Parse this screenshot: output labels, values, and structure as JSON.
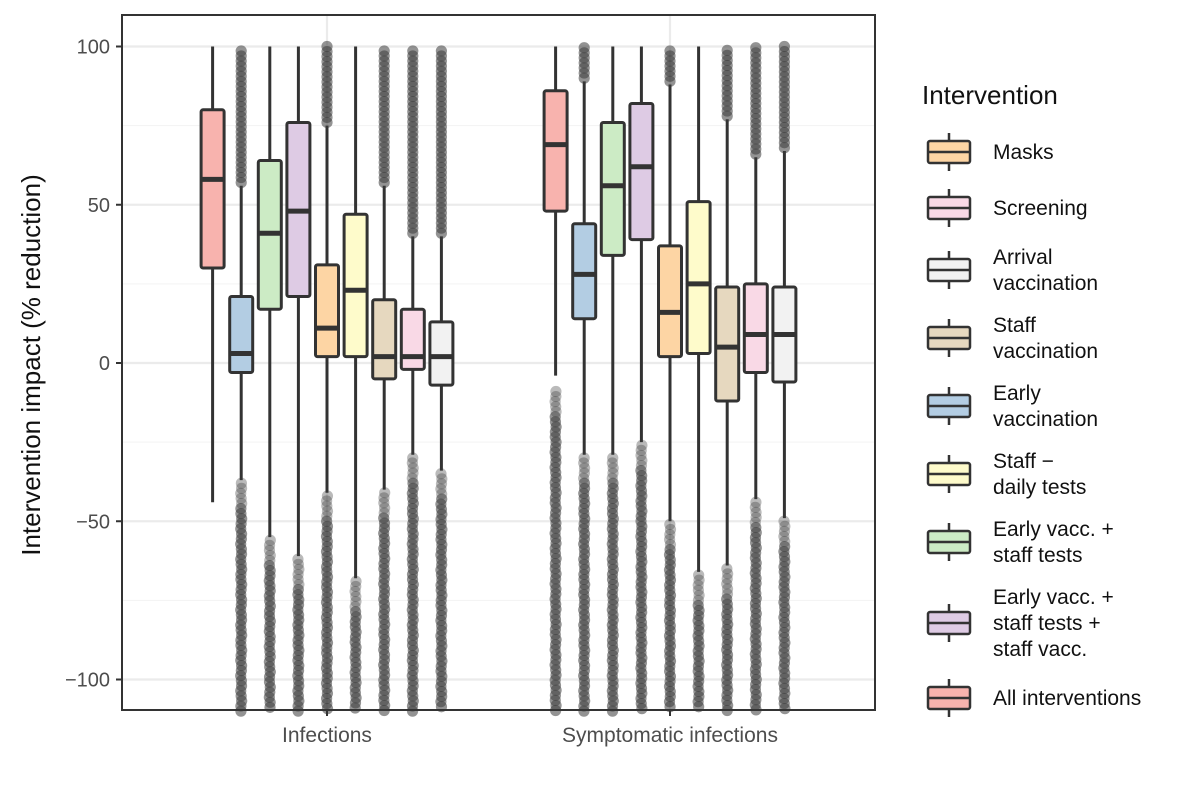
{
  "chart_data": {
    "type": "boxplot",
    "title": "",
    "xlabel": "",
    "ylabel": "Intervention impact (% reduction)",
    "ylim": [
      -110,
      105
    ],
    "yticks": [
      -100,
      -50,
      0,
      50,
      100
    ],
    "grid": true,
    "legend_position": "right",
    "legend": {
      "title": "Intervention",
      "items": [
        {
          "name": "Masks",
          "lines": [
            "Masks"
          ],
          "color": "#fdd5a4"
        },
        {
          "name": "Screening",
          "lines": [
            "Screening"
          ],
          "color": "#f9d9e6"
        },
        {
          "name": "Arrival vaccination",
          "lines": [
            "Arrival",
            "vaccination"
          ],
          "color": "#f2f2f2"
        },
        {
          "name": "Staff vaccination",
          "lines": [
            "Staff",
            "vaccination"
          ],
          "color": "#e6d8bf"
        },
        {
          "name": "Early vaccination",
          "lines": [
            "Early",
            "vaccination"
          ],
          "color": "#b3cde3"
        },
        {
          "name": "Staff − daily tests",
          "lines": [
            "Staff −",
            "daily tests"
          ],
          "color": "#fefbcb"
        },
        {
          "name": "Early vacc. + staff tests",
          "lines": [
            "Early vacc. +",
            "staff tests"
          ],
          "color": "#ccebc5"
        },
        {
          "name": "Early vacc. + staff tests + staff vacc.",
          "lines": [
            "Early vacc. +",
            "staff tests +",
            "staff vacc."
          ],
          "color": "#decbe4"
        },
        {
          "name": "All interventions",
          "lines": [
            "All interventions"
          ],
          "color": "#f8b3ae"
        }
      ]
    },
    "categories": [
      "Infections",
      "Symptomatic infections"
    ],
    "box_order": [
      "All interventions",
      "Early vaccination",
      "Early vacc. + staff tests",
      "Early vacc. + staff tests + staff vacc.",
      "Masks",
      "Staff − daily tests",
      "Staff vaccination",
      "Screening",
      "Arrival vaccination"
    ],
    "boxes": [
      [
        {
          "series": "All interventions",
          "whisker_low": -44,
          "q1": 30,
          "median": 58,
          "q3": 80,
          "whisker_high": 100,
          "outliers_low_from": null,
          "outliers_high_from": null
        },
        {
          "series": "Early vaccination",
          "whisker_low": -37,
          "q1": -3,
          "median": 3,
          "q3": 21,
          "whisker_high": 56,
          "outliers_low_from": -38,
          "outliers_high_from": 57
        },
        {
          "series": "Early vacc. + staff tests",
          "whisker_low": -55,
          "q1": 17,
          "median": 41,
          "q3": 64,
          "whisker_high": 100,
          "outliers_low_from": -56,
          "outliers_high_from": null
        },
        {
          "series": "Early vacc. + staff tests + staff vacc.",
          "whisker_low": -61,
          "q1": 21,
          "median": 48,
          "q3": 76,
          "whisker_high": 100,
          "outliers_low_from": -62,
          "outliers_high_from": null
        },
        {
          "series": "Masks",
          "whisker_low": -41,
          "q1": 2,
          "median": 11,
          "q3": 31,
          "whisker_high": 75,
          "outliers_low_from": -42,
          "outliers_high_from": 76
        },
        {
          "series": "Staff − daily tests",
          "whisker_low": -68,
          "q1": 2,
          "median": 23,
          "q3": 47,
          "whisker_high": 100,
          "outliers_low_from": -69,
          "outliers_high_from": null
        },
        {
          "series": "Staff vaccination",
          "whisker_low": -40,
          "q1": -5,
          "median": 2,
          "q3": 20,
          "whisker_high": 56,
          "outliers_low_from": -41,
          "outliers_high_from": 57
        },
        {
          "series": "Screening",
          "whisker_low": -29,
          "q1": -2,
          "median": 2,
          "q3": 17,
          "whisker_high": 40,
          "outliers_low_from": -30,
          "outliers_high_from": 41
        },
        {
          "series": "Arrival vaccination",
          "whisker_low": -34,
          "q1": -7,
          "median": 2,
          "q3": 13,
          "whisker_high": 40,
          "outliers_low_from": -35,
          "outliers_high_from": 41
        }
      ],
      [
        {
          "series": "All interventions",
          "whisker_low": -4,
          "q1": 48,
          "median": 69,
          "q3": 86,
          "whisker_high": 100,
          "outliers_low_from": -9,
          "outliers_high_from": null
        },
        {
          "series": "Early vaccination",
          "whisker_low": -29,
          "q1": 14,
          "median": 28,
          "q3": 44,
          "whisker_high": 89,
          "outliers_low_from": -30,
          "outliers_high_from": 90
        },
        {
          "series": "Early vacc. + staff tests",
          "whisker_low": -29,
          "q1": 34,
          "median": 56,
          "q3": 76,
          "whisker_high": 100,
          "outliers_low_from": -30,
          "outliers_high_from": null
        },
        {
          "series": "Early vacc. + staff tests + staff vacc.",
          "whisker_low": -25,
          "q1": 39,
          "median": 62,
          "q3": 82,
          "whisker_high": 100,
          "outliers_low_from": -26,
          "outliers_high_from": null
        },
        {
          "series": "Masks",
          "whisker_low": -50,
          "q1": 2,
          "median": 16,
          "q3": 37,
          "whisker_high": 88,
          "outliers_low_from": -51,
          "outliers_high_from": 89
        },
        {
          "series": "Staff − daily tests",
          "whisker_low": -66,
          "q1": 3,
          "median": 25,
          "q3": 51,
          "whisker_high": 100,
          "outliers_low_from": -67,
          "outliers_high_from": null
        },
        {
          "series": "Staff vaccination",
          "whisker_low": -64,
          "q1": -12,
          "median": 5,
          "q3": 24,
          "whisker_high": 77,
          "outliers_low_from": -65,
          "outliers_high_from": 78
        },
        {
          "series": "Screening",
          "whisker_low": -43,
          "q1": -3,
          "median": 9,
          "q3": 25,
          "whisker_high": 65,
          "outliers_low_from": -44,
          "outliers_high_from": 66
        },
        {
          "series": "Arrival vaccination",
          "whisker_low": -49,
          "q1": -6,
          "median": 9,
          "q3": 24,
          "whisker_high": 67,
          "outliers_low_from": -50,
          "outliers_high_from": 68
        }
      ]
    ]
  }
}
